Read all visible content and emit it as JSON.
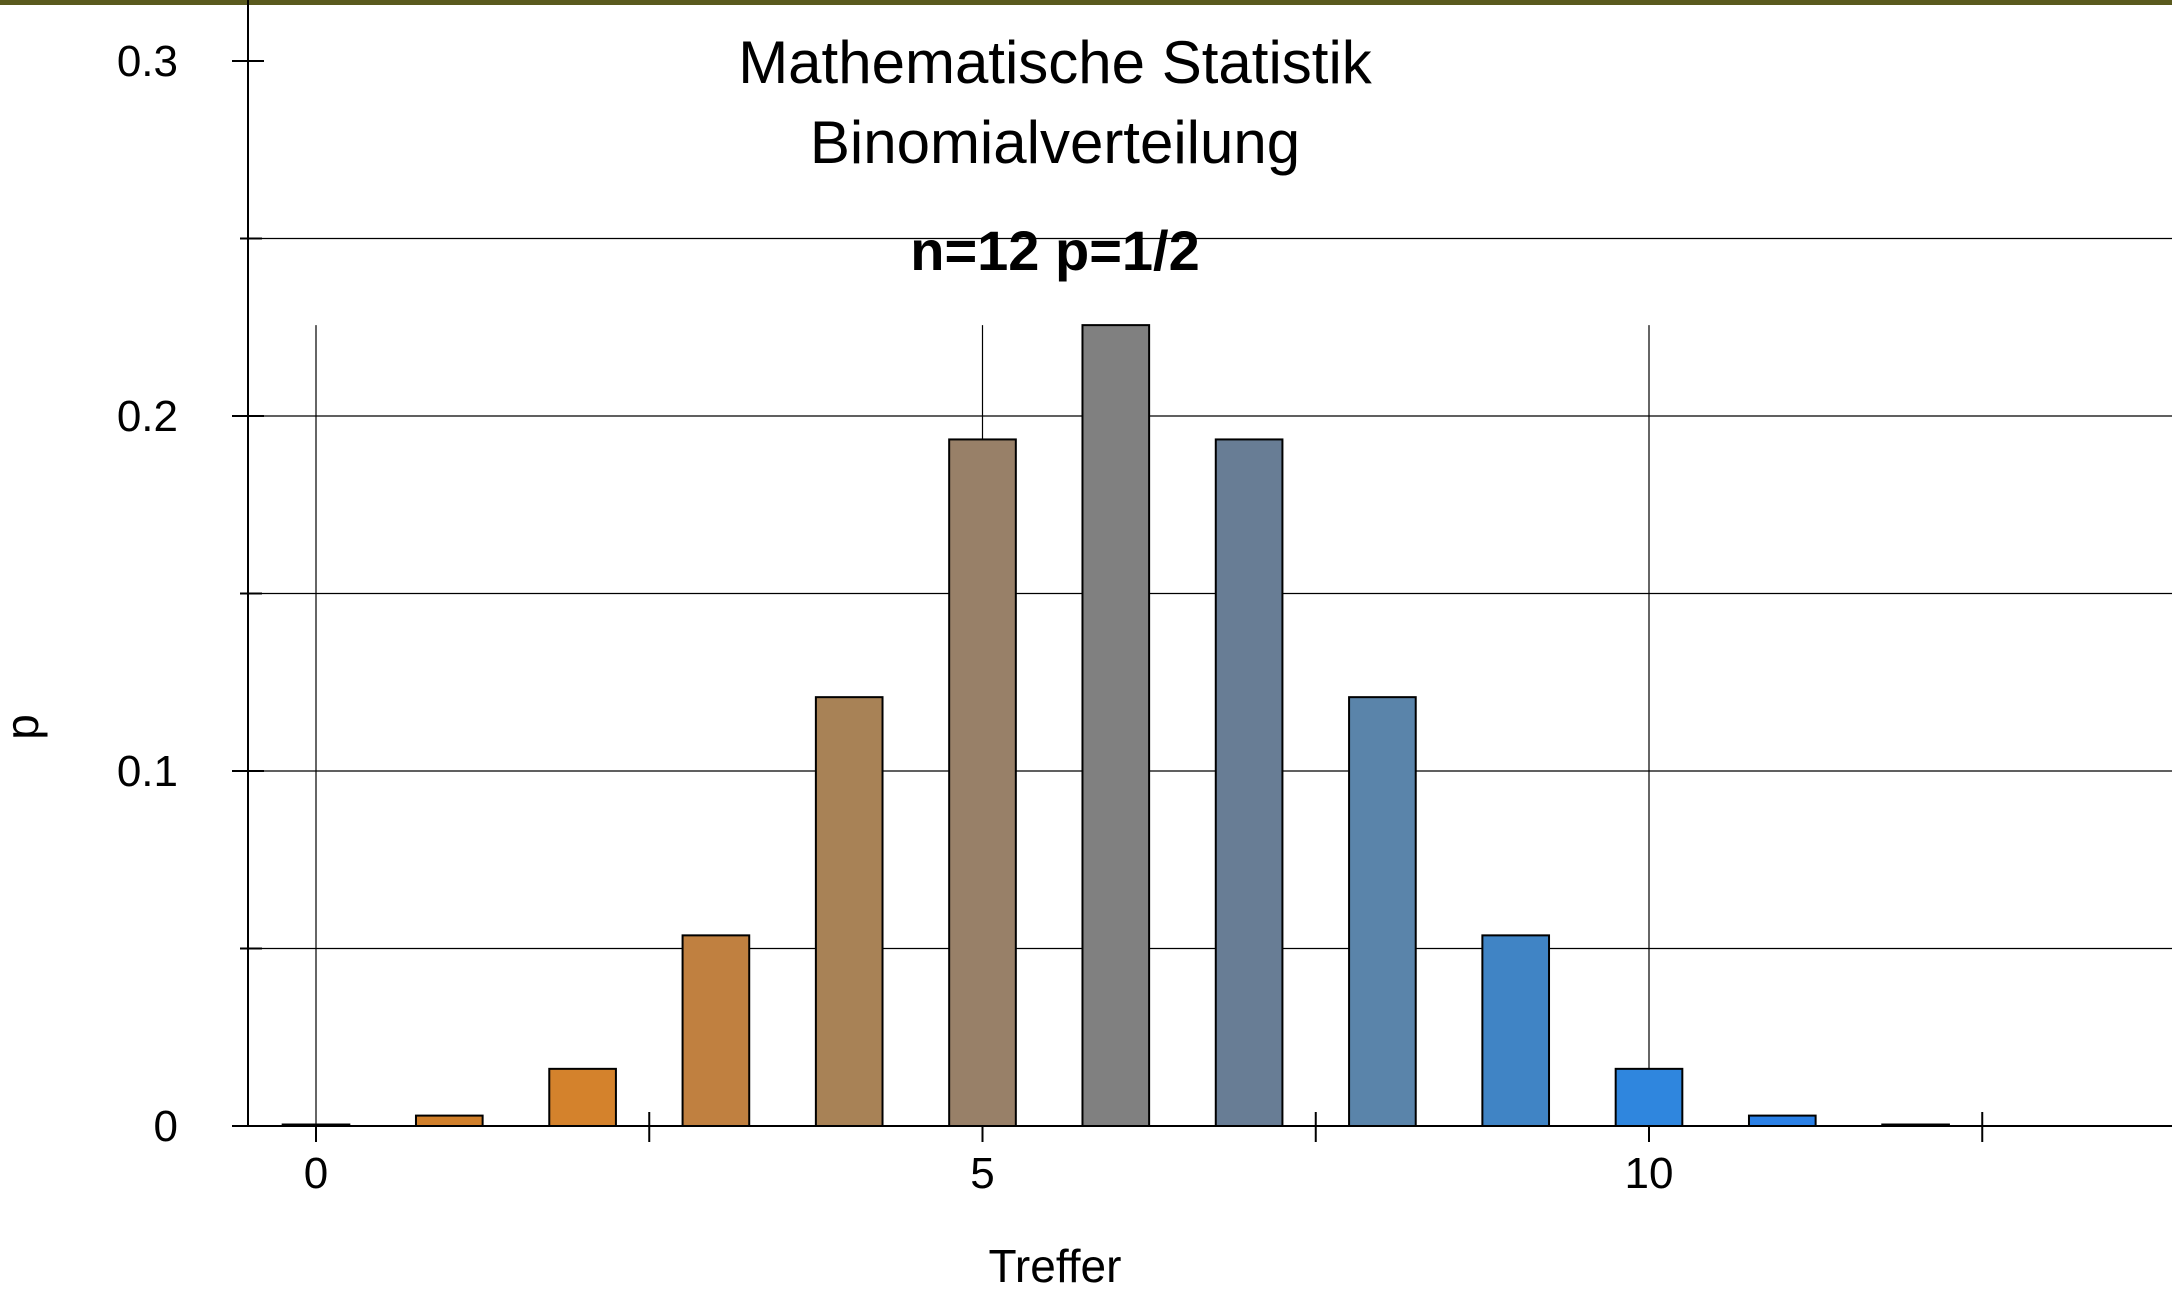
{
  "chart_data": {
    "type": "bar",
    "title_lines": [
      "Mathematische Statistik",
      "Binomialverteilung"
    ],
    "subtitle": "n=12 p=1/2",
    "xlabel": "Treffer",
    "ylabel": "p",
    "x": [
      0,
      1,
      2,
      3,
      4,
      5,
      6,
      7,
      8,
      9,
      10,
      11,
      12
    ],
    "values": [
      0.000244,
      0.00293,
      0.0161,
      0.0537,
      0.1208,
      0.1934,
      0.2256,
      0.1934,
      0.1208,
      0.0537,
      0.0161,
      0.00293,
      0.000244
    ],
    "bar_colors": [
      "#c87820",
      "#d07f2a",
      "#d4822c",
      "#c08040",
      "#a88256",
      "#988068",
      "#808080",
      "#687d95",
      "#5a84aa",
      "#4084c5",
      "#2f86de",
      "#2a80e6",
      "#2a80e6"
    ],
    "xlim": [
      -1,
      13.5
    ],
    "ylim": [
      0,
      0.3
    ],
    "x_ticks_labeled": [
      0,
      5,
      10
    ],
    "x_tick_labels": [
      "0",
      "5",
      "10"
    ],
    "x_ticks_minor": [
      2.5,
      7.5,
      12.5
    ],
    "y_ticks_labeled": [
      0,
      0.1,
      0.2,
      0.3
    ],
    "y_tick_labels": [
      "0",
      "0.1",
      "0.2",
      "0.3"
    ],
    "y_ticks_minor": [
      0.05,
      0.15,
      0.25
    ],
    "grid": true,
    "legend": false
  },
  "colors": {
    "top_border": "#5a5a1e",
    "axis": "#000000",
    "grid": "#000000",
    "bar_stroke": "#000000"
  }
}
